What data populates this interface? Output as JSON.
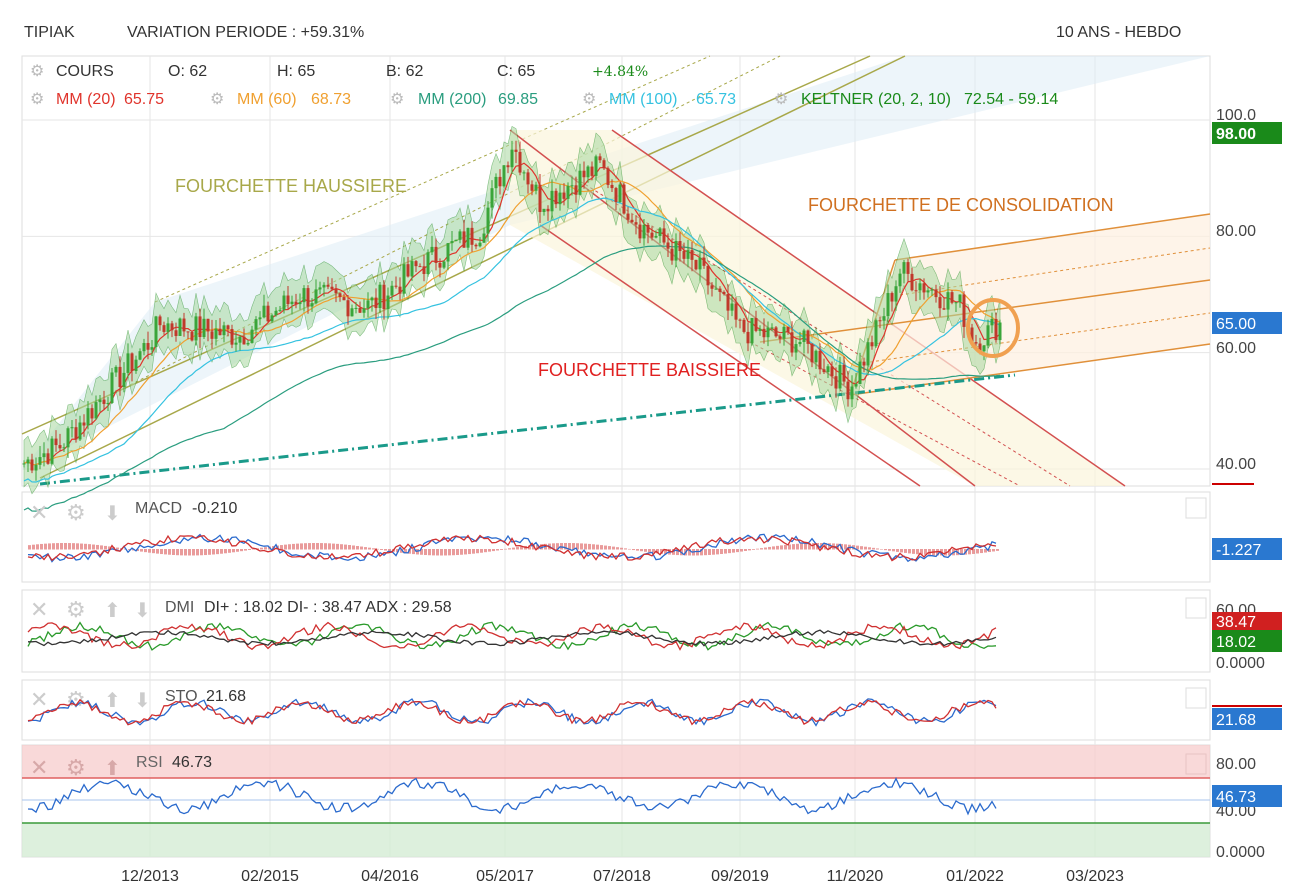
{
  "header": {
    "symbol": "TIPIAK",
    "variation": "VARIATION PERIODE : +59.31%",
    "range": "10 ANS - HEBDO"
  },
  "legend": {
    "cours": "COURS",
    "open": "O: 62",
    "high": "H: 65",
    "low": "B: 62",
    "close": "C: 65",
    "change": "+4.84%",
    "mm20": "MM (20)",
    "mm20_val": "65.75",
    "mm60": "MM (60)",
    "mm60_val": "68.73",
    "mm200": "MM (200)",
    "mm200_val": "69.85",
    "mm100": "MM (100)",
    "mm100_val": "65.73",
    "keltner": "KELTNER (20, 2, 10)",
    "keltner_val": "72.54 - 59.14"
  },
  "colors": {
    "up": "#3aa53a",
    "down": "#c0392b",
    "mm20": "#e0342c",
    "mm60": "#f0a030",
    "mm200": "#2a9d7f",
    "mm100": "#35c2e0",
    "keltner": "#1a8a1a",
    "bull_channel": "#a8a84a",
    "bear_channel": "#d35050",
    "consol_channel": "#e0903a",
    "support": "#1a9a8a",
    "circle": "#f0a050"
  },
  "annotations": {
    "bull": "FOURCHETTE HAUSSIERE",
    "bear": "FOURCHETTE BAISSIERE",
    "consol": "FOURCHETTE DE CONSOLIDATION"
  },
  "price_axis": {
    "ticks": [
      "100.0",
      "80.00",
      "60.00",
      "40.00"
    ],
    "badge_high": "98.00",
    "badge_last": "65.00"
  },
  "x_axis": {
    "labels": [
      "12/2013",
      "02/2015",
      "04/2016",
      "05/2017",
      "07/2018",
      "09/2019",
      "11/2020",
      "01/2022",
      "03/2023"
    ]
  },
  "panels": {
    "macd": {
      "label": "MACD",
      "value": "-0.210",
      "badge": "-1.227"
    },
    "dmi": {
      "label": "DMI",
      "value": "DI+ : 18.02 DI- : 38.47 ADX : 29.58",
      "ticks": [
        "60.00",
        "0.0000"
      ],
      "badge_minus": "38.47",
      "badge_plus": "18.02"
    },
    "sto": {
      "label": "STO",
      "value": "21.68",
      "badge": "21.68"
    },
    "rsi": {
      "label": "RSI",
      "value": "46.73",
      "ticks": [
        "80.00",
        "40.00",
        "0.0000"
      ],
      "badge": "46.73"
    }
  },
  "chart_data": {
    "type": "line",
    "title": "TIPIAK",
    "x": [
      "12/2013",
      "02/2015",
      "04/2016",
      "05/2017",
      "07/2018",
      "09/2019",
      "11/2020",
      "01/2022"
    ],
    "series": [
      {
        "name": "COURS",
        "values": [
          58,
          62,
          70,
          94,
          85,
          63,
          55,
          65
        ]
      }
    ],
    "ylim": [
      38,
      100
    ],
    "ohlc_last": {
      "open": 62,
      "high": 65,
      "low": 62,
      "close": 65
    }
  }
}
